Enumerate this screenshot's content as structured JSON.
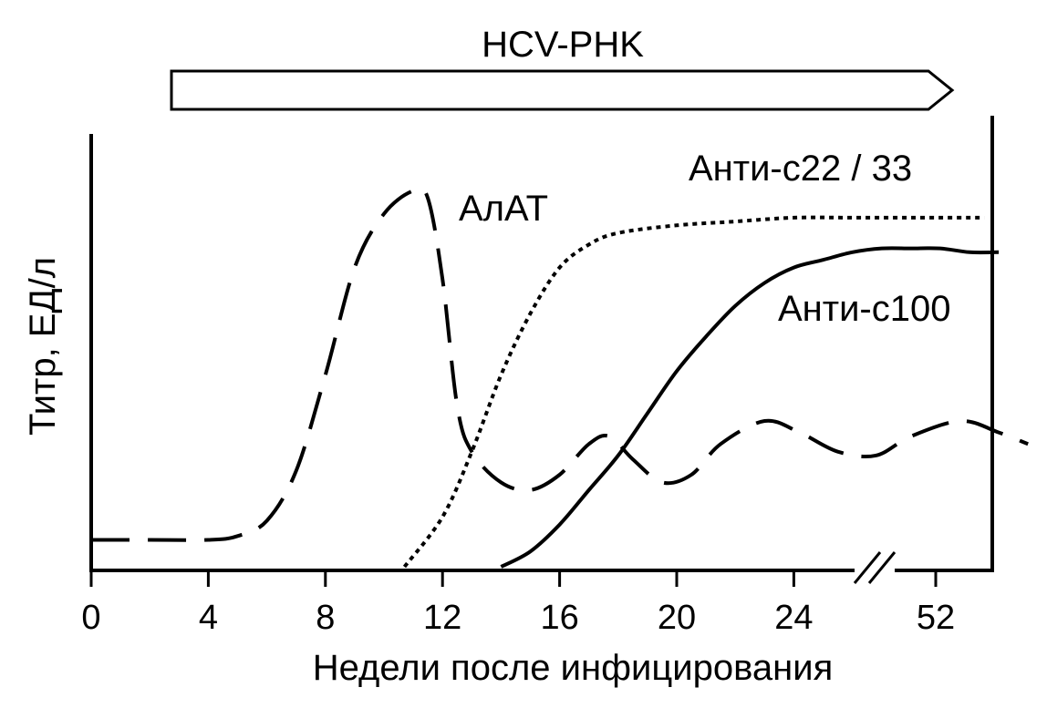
{
  "chart_data": {
    "type": "line",
    "banner": "HCV-PHK",
    "xlabel": "Недели после инфицирования",
    "ylabel": "Титр, ЕД/л",
    "x_tick_labels": [
      "0",
      "4",
      "8",
      "12",
      "16",
      "20",
      "24",
      "52"
    ],
    "axis_break": "between 24 and 52",
    "grid": false,
    "series": [
      {
        "name": "АлАТ",
        "style": "dashed",
        "points": [
          [
            0,
            0.07
          ],
          [
            2,
            0.07
          ],
          [
            4,
            0.07
          ],
          [
            5,
            0.08
          ],
          [
            6,
            0.12
          ],
          [
            7,
            0.25
          ],
          [
            8,
            0.5
          ],
          [
            9,
            0.78
          ],
          [
            10,
            0.92
          ],
          [
            11,
            0.98
          ],
          [
            11.5,
            0.96
          ],
          [
            12,
            0.75
          ],
          [
            12.5,
            0.42
          ],
          [
            13,
            0.3
          ],
          [
            14,
            0.22
          ],
          [
            15,
            0.2
          ],
          [
            16,
            0.24
          ],
          [
            17,
            0.32
          ],
          [
            17.7,
            0.34
          ],
          [
            18.5,
            0.28
          ],
          [
            19.5,
            0.22
          ],
          [
            20.5,
            0.24
          ],
          [
            21.5,
            0.32
          ],
          [
            23,
            0.38
          ],
          [
            24.2,
            0.35
          ],
          [
            25.5,
            0.3
          ],
          [
            26.8,
            0.29
          ],
          [
            28,
            0.34
          ],
          [
            29.7,
            0.38
          ],
          [
            31,
            0.35
          ],
          [
            32,
            0.32
          ]
        ]
      },
      {
        "name": "Анти-c22 / 33",
        "style": "dotted",
        "points": [
          [
            10.7,
            0
          ],
          [
            12,
            0.13
          ],
          [
            13,
            0.3
          ],
          [
            14,
            0.5
          ],
          [
            15,
            0.66
          ],
          [
            16,
            0.78
          ],
          [
            17,
            0.84
          ],
          [
            18,
            0.87
          ],
          [
            20,
            0.89
          ],
          [
            22,
            0.9
          ],
          [
            24,
            0.91
          ],
          [
            26,
            0.91
          ],
          [
            28,
            0.91
          ],
          [
            30,
            0.91
          ],
          [
            30.5,
            0.91
          ]
        ]
      },
      {
        "name": "Анти-c100",
        "style": "solid",
        "points": [
          [
            14,
            0
          ],
          [
            15,
            0.04
          ],
          [
            16,
            0.11
          ],
          [
            17,
            0.2
          ],
          [
            18,
            0.29
          ],
          [
            19,
            0.4
          ],
          [
            20,
            0.51
          ],
          [
            21,
            0.6
          ],
          [
            22,
            0.68
          ],
          [
            23,
            0.74
          ],
          [
            24,
            0.78
          ],
          [
            25,
            0.8
          ],
          [
            26,
            0.82
          ],
          [
            27,
            0.83
          ],
          [
            28,
            0.83
          ],
          [
            29,
            0.83
          ],
          [
            30,
            0.82
          ],
          [
            31,
            0.82
          ]
        ]
      }
    ]
  }
}
